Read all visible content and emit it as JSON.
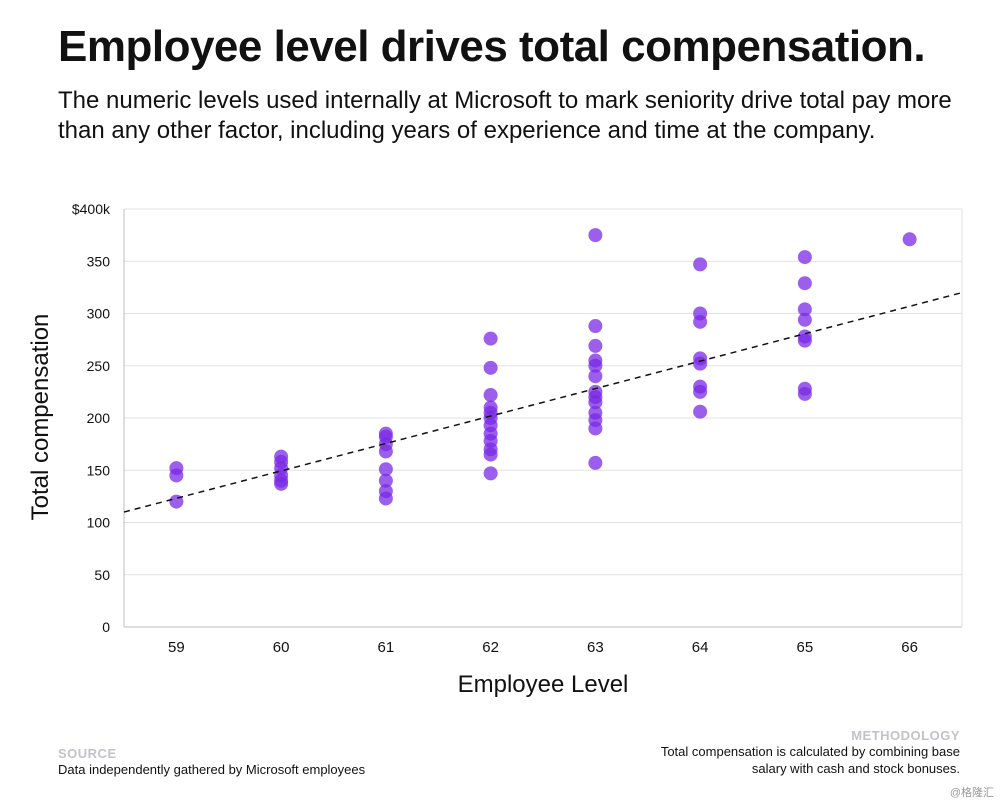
{
  "header": {
    "title": "Employee level drives total compensation.",
    "subtitle": "The numeric levels used internally at Microsoft to mark seniority drive total pay more than any other factor, including years of experience and time at the company."
  },
  "chart_data": {
    "type": "scatter",
    "title": "",
    "xlabel": "Employee Level",
    "ylabel": "Total compensation",
    "x_ticks": [
      "59",
      "60",
      "61",
      "62",
      "63",
      "64",
      "65",
      "66"
    ],
    "y_ticks": [
      "0",
      "50",
      "100",
      "150",
      "200",
      "250",
      "300",
      "350",
      "$400k"
    ],
    "xlim": [
      58.5,
      66.5
    ],
    "ylim": [
      0,
      400
    ],
    "grid": "horizontal",
    "point_color": "#7a2ae6",
    "trendline": {
      "style": "dashed",
      "color": "#111111",
      "x": [
        58.5,
        66.5
      ],
      "y": [
        110,
        320
      ]
    },
    "points": [
      {
        "x": 59,
        "y": 152
      },
      {
        "x": 59,
        "y": 145
      },
      {
        "x": 59,
        "y": 120
      },
      {
        "x": 60,
        "y": 163
      },
      {
        "x": 60,
        "y": 158
      },
      {
        "x": 60,
        "y": 152
      },
      {
        "x": 60,
        "y": 145
      },
      {
        "x": 60,
        "y": 140
      },
      {
        "x": 60,
        "y": 137
      },
      {
        "x": 61,
        "y": 185
      },
      {
        "x": 61,
        "y": 182
      },
      {
        "x": 61,
        "y": 175
      },
      {
        "x": 61,
        "y": 168
      },
      {
        "x": 61,
        "y": 151
      },
      {
        "x": 61,
        "y": 140
      },
      {
        "x": 61,
        "y": 130
      },
      {
        "x": 61,
        "y": 123
      },
      {
        "x": 62,
        "y": 276
      },
      {
        "x": 62,
        "y": 248
      },
      {
        "x": 62,
        "y": 222
      },
      {
        "x": 62,
        "y": 210
      },
      {
        "x": 62,
        "y": 205
      },
      {
        "x": 62,
        "y": 200
      },
      {
        "x": 62,
        "y": 193
      },
      {
        "x": 62,
        "y": 185
      },
      {
        "x": 62,
        "y": 178
      },
      {
        "x": 62,
        "y": 170
      },
      {
        "x": 62,
        "y": 165
      },
      {
        "x": 62,
        "y": 147
      },
      {
        "x": 63,
        "y": 375
      },
      {
        "x": 63,
        "y": 288
      },
      {
        "x": 63,
        "y": 269
      },
      {
        "x": 63,
        "y": 255
      },
      {
        "x": 63,
        "y": 250
      },
      {
        "x": 63,
        "y": 240
      },
      {
        "x": 63,
        "y": 225
      },
      {
        "x": 63,
        "y": 220
      },
      {
        "x": 63,
        "y": 215
      },
      {
        "x": 63,
        "y": 205
      },
      {
        "x": 63,
        "y": 198
      },
      {
        "x": 63,
        "y": 190
      },
      {
        "x": 63,
        "y": 157
      },
      {
        "x": 64,
        "y": 347
      },
      {
        "x": 64,
        "y": 300
      },
      {
        "x": 64,
        "y": 292
      },
      {
        "x": 64,
        "y": 257
      },
      {
        "x": 64,
        "y": 252
      },
      {
        "x": 64,
        "y": 230
      },
      {
        "x": 64,
        "y": 225
      },
      {
        "x": 64,
        "y": 206
      },
      {
        "x": 65,
        "y": 354
      },
      {
        "x": 65,
        "y": 329
      },
      {
        "x": 65,
        "y": 304
      },
      {
        "x": 65,
        "y": 294
      },
      {
        "x": 65,
        "y": 278
      },
      {
        "x": 65,
        "y": 274
      },
      {
        "x": 65,
        "y": 228
      },
      {
        "x": 65,
        "y": 223
      },
      {
        "x": 66,
        "y": 371
      }
    ]
  },
  "footer": {
    "source_heading": "SOURCE",
    "source_text": "Data independently gathered by Microsoft employees",
    "methodology_heading": "METHODOLOGY",
    "methodology_text": "Total compensation is calculated by combining base salary with cash and stock bonuses."
  },
  "watermark": "@格隆汇"
}
